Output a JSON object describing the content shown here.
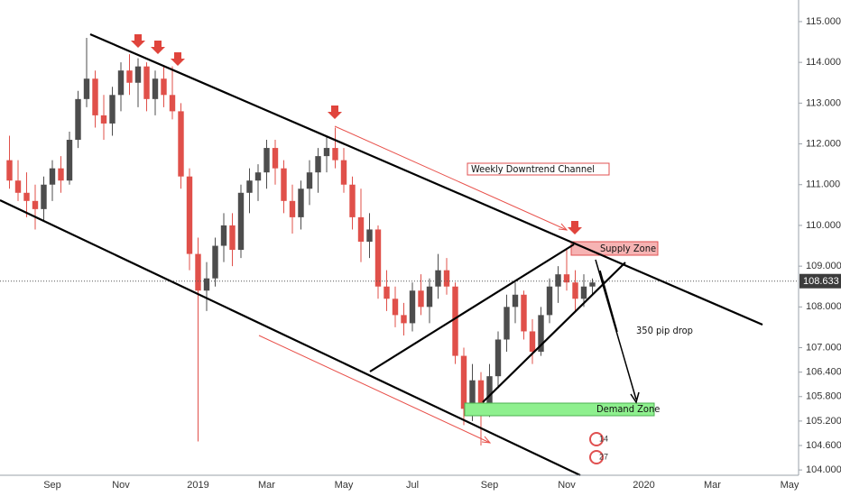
{
  "chart_data": {
    "type": "candlestick",
    "categories": [
      null,
      null,
      null,
      null,
      null,
      "Sep",
      null,
      null,
      null,
      null,
      null,
      null,
      null,
      "Nov",
      null,
      null,
      null,
      null,
      null,
      null,
      null,
      null,
      "2019",
      null,
      null,
      null,
      null,
      null,
      null,
      null,
      "Mar",
      null,
      null,
      null,
      null,
      null,
      null,
      null,
      null,
      "May",
      null,
      null,
      null,
      null,
      null,
      null,
      null,
      "Jul",
      null,
      null,
      null,
      null,
      null,
      null,
      null,
      null,
      "Sep",
      null,
      null,
      null,
      null,
      null,
      null,
      null,
      null,
      "Nov",
      null,
      null,
      null,
      null,
      null,
      null,
      null,
      null,
      "2020",
      null,
      null,
      null,
      null,
      null,
      null,
      null,
      "Mar",
      null,
      null,
      null,
      null,
      null,
      null,
      null,
      null,
      "May"
    ],
    "open": [
      111.6,
      111.1,
      110.8,
      110.6,
      110.4,
      111.0,
      111.4,
      111.1,
      112.1,
      113.1,
      113.6,
      112.7,
      112.5,
      113.2,
      113.8,
      113.5,
      113.9,
      113.1,
      113.6,
      113.2,
      112.8,
      111.2,
      109.3,
      108.4,
      108.7,
      109.5,
      110.0,
      109.4,
      110.8,
      111.1,
      111.3,
      111.9,
      111.4,
      110.6,
      110.2,
      110.9,
      111.3,
      111.7,
      111.9,
      111.6,
      111.0,
      110.2,
      109.6,
      109.9,
      108.5,
      108.2,
      107.8,
      107.6,
      108.4,
      108.0,
      108.5,
      108.9,
      108.5,
      106.8,
      105.5,
      106.2,
      105.5,
      106.3,
      107.2,
      108.0,
      108.3,
      107.4,
      106.9,
      107.8,
      108.5,
      108.8,
      108.6,
      108.2,
      108.5,
      null,
      null,
      null,
      null,
      null,
      null,
      null,
      null,
      null,
      null,
      null,
      null,
      null,
      null,
      null,
      null,
      null,
      null,
      null,
      null,
      null,
      null,
      null
    ],
    "high": [
      112.2,
      111.6,
      111.3,
      111.0,
      111.2,
      111.6,
      111.7,
      112.3,
      113.3,
      114.6,
      113.8,
      113.2,
      113.4,
      114.0,
      114.2,
      114.1,
      114.0,
      113.8,
      113.9,
      113.9,
      113.0,
      111.4,
      109.7,
      109.1,
      109.7,
      110.3,
      110.3,
      111.0,
      111.4,
      111.5,
      112.1,
      112.1,
      111.6,
      111.0,
      111.1,
      111.6,
      111.9,
      112.2,
      112.4,
      111.9,
      111.2,
      110.9,
      110.3,
      110.0,
      108.9,
      108.5,
      108.1,
      108.6,
      108.8,
      108.7,
      109.3,
      109.2,
      108.6,
      107.0,
      106.6,
      106.4,
      106.6,
      107.4,
      108.3,
      108.6,
      108.4,
      107.7,
      108.0,
      108.7,
      109.0,
      109.4,
      108.9,
      108.8,
      108.7,
      null,
      null,
      null,
      null,
      null,
      null,
      null,
      null,
      null,
      null,
      null,
      null,
      null,
      null,
      null,
      null,
      null,
      null,
      null,
      null,
      null,
      null,
      null
    ],
    "low": [
      110.9,
      110.6,
      110.2,
      109.9,
      110.1,
      110.6,
      110.8,
      111.0,
      111.9,
      112.9,
      112.4,
      112.1,
      112.2,
      112.8,
      113.2,
      112.9,
      112.8,
      112.7,
      112.9,
      112.6,
      110.9,
      108.9,
      104.7,
      107.9,
      108.5,
      109.1,
      109.0,
      109.2,
      110.3,
      110.6,
      110.9,
      111.0,
      110.3,
      109.8,
      109.9,
      110.5,
      110.8,
      111.3,
      111.4,
      110.8,
      109.9,
      109.1,
      109.2,
      108.2,
      107.9,
      107.5,
      107.3,
      107.4,
      107.8,
      107.6,
      108.2,
      108.3,
      106.6,
      105.1,
      105.2,
      104.6,
      105.3,
      106.0,
      106.9,
      107.6,
      107.2,
      106.6,
      106.8,
      107.6,
      108.1,
      108.4,
      107.9,
      108.0,
      108.3,
      null,
      null,
      null,
      null,
      null,
      null,
      null,
      null,
      null,
      null,
      null,
      null,
      null,
      null,
      null,
      null,
      null,
      null,
      null,
      null,
      null,
      null,
      null
    ],
    "close": [
      111.1,
      110.8,
      110.6,
      110.4,
      111.0,
      111.4,
      111.1,
      112.1,
      113.1,
      113.6,
      112.7,
      112.5,
      113.2,
      113.8,
      113.5,
      113.9,
      113.1,
      113.6,
      113.2,
      112.8,
      111.2,
      109.3,
      108.4,
      108.7,
      109.5,
      110.0,
      109.4,
      110.8,
      111.1,
      111.3,
      111.9,
      111.4,
      110.6,
      110.2,
      110.9,
      111.3,
      111.7,
      111.9,
      111.6,
      111.0,
      110.2,
      109.6,
      109.9,
      108.5,
      108.2,
      107.8,
      107.6,
      108.4,
      108.0,
      108.5,
      108.9,
      108.5,
      106.8,
      105.5,
      106.2,
      105.5,
      106.3,
      107.2,
      108.0,
      108.3,
      107.4,
      106.9,
      107.8,
      108.5,
      108.8,
      108.6,
      108.2,
      108.5,
      108.6,
      null,
      null,
      null,
      null,
      null,
      null,
      null,
      null,
      null,
      null,
      null,
      null,
      null,
      null,
      null,
      null,
      null,
      null,
      null,
      null,
      null,
      null,
      null
    ],
    "up_color": "#4d4d4d",
    "down_color": "#e0504a",
    "ylim": [
      103.87,
      115.53
    ],
    "yticks": [
      {
        "value": 115,
        "label": "115.000"
      },
      {
        "value": 114,
        "label": "114.000"
      },
      {
        "value": 113,
        "label": "113.000"
      },
      {
        "value": 112,
        "label": "112.000"
      },
      {
        "value": 111,
        "label": "111.000"
      },
      {
        "value": 110,
        "label": "110.000"
      },
      {
        "value": 109,
        "label": "109.000"
      },
      {
        "value": 108,
        "label": "108.000"
      },
      {
        "value": 107,
        "label": "107.000"
      },
      {
        "value": 106.4,
        "label": "106.400"
      },
      {
        "value": 105.8,
        "label": "105.800"
      },
      {
        "value": 105.2,
        "label": "105.200"
      },
      {
        "value": 104.6,
        "label": "104.600"
      },
      {
        "value": 104,
        "label": "104.000"
      }
    ],
    "last_price": {
      "value": 108.633,
      "label": "108.633"
    },
    "annotations": {
      "channel_label": "Weekly Downtrend Channel",
      "supply_zone": "Supply Zone",
      "demand_zone": "Demand Zone",
      "drop_label": "350 pip drop"
    },
    "badges": [
      "14",
      "27"
    ]
  }
}
